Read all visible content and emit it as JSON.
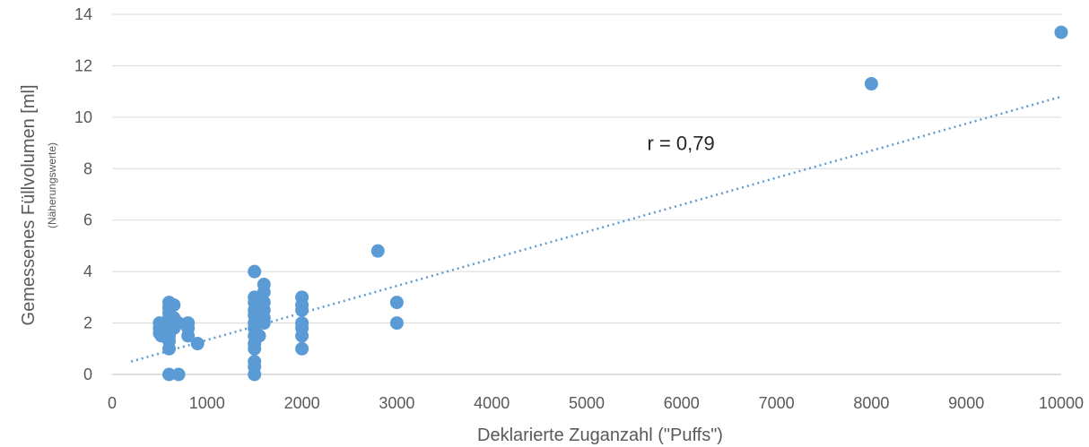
{
  "chart_data": {
    "type": "scatter",
    "xlabel": "Deklarierte Zuganzahl (\"Puffs\")",
    "ylabel": "Gemessenes Füllvolumen [ml]",
    "ylabel_sub": "(Näherungswerte)",
    "xlim": [
      0,
      10000
    ],
    "ylim": [
      0,
      14
    ],
    "xticks": [
      0,
      1000,
      2000,
      3000,
      4000,
      5000,
      6000,
      7000,
      8000,
      9000,
      10000
    ],
    "yticks": [
      0,
      2,
      4,
      6,
      8,
      10,
      12,
      14
    ],
    "grid": "horizontal",
    "colors": {
      "points": "#5b9bd5",
      "trend": "#5b9bd5"
    },
    "annotation": {
      "text": "r = 0,79",
      "x": 6300,
      "y": 9.0
    },
    "trendline": {
      "x": [
        200,
        10000
      ],
      "y": [
        0.5,
        10.8
      ]
    },
    "series": [
      {
        "points": [
          [
            500,
            2.0
          ],
          [
            500,
            1.8
          ],
          [
            500,
            1.6
          ],
          [
            520,
            1.5
          ],
          [
            550,
            1.9
          ],
          [
            550,
            1.7
          ],
          [
            600,
            2.8
          ],
          [
            600,
            2.6
          ],
          [
            600,
            2.4
          ],
          [
            600,
            2.2
          ],
          [
            600,
            2.0
          ],
          [
            600,
            1.8
          ],
          [
            600,
            1.5
          ],
          [
            600,
            1.3
          ],
          [
            600,
            1.0
          ],
          [
            600,
            0.0
          ],
          [
            650,
            2.7
          ],
          [
            650,
            2.2
          ],
          [
            650,
            1.8
          ],
          [
            700,
            2.0
          ],
          [
            700,
            0.0
          ],
          [
            800,
            2.0
          ],
          [
            800,
            1.8
          ],
          [
            800,
            1.5
          ],
          [
            900,
            1.2
          ],
          [
            1500,
            4.0
          ],
          [
            1500,
            3.0
          ],
          [
            1500,
            2.8
          ],
          [
            1500,
            2.5
          ],
          [
            1500,
            2.3
          ],
          [
            1500,
            2.0
          ],
          [
            1500,
            1.8
          ],
          [
            1500,
            1.5
          ],
          [
            1500,
            1.2
          ],
          [
            1500,
            1.0
          ],
          [
            1500,
            0.5
          ],
          [
            1500,
            0.3
          ],
          [
            1500,
            0.0
          ],
          [
            1550,
            2.8
          ],
          [
            1550,
            2.5
          ],
          [
            1550,
            2.0
          ],
          [
            1550,
            1.5
          ],
          [
            1600,
            3.5
          ],
          [
            1600,
            3.2
          ],
          [
            1600,
            2.8
          ],
          [
            1600,
            2.5
          ],
          [
            1600,
            2.2
          ],
          [
            1600,
            2.0
          ],
          [
            2000,
            3.0
          ],
          [
            2000,
            2.7
          ],
          [
            2000,
            2.5
          ],
          [
            2000,
            2.0
          ],
          [
            2000,
            1.8
          ],
          [
            2000,
            1.5
          ],
          [
            2000,
            1.0
          ],
          [
            2800,
            4.8
          ],
          [
            3000,
            2.8
          ],
          [
            3000,
            2.0
          ],
          [
            8000,
            11.3
          ],
          [
            10000,
            13.3
          ]
        ]
      }
    ]
  }
}
